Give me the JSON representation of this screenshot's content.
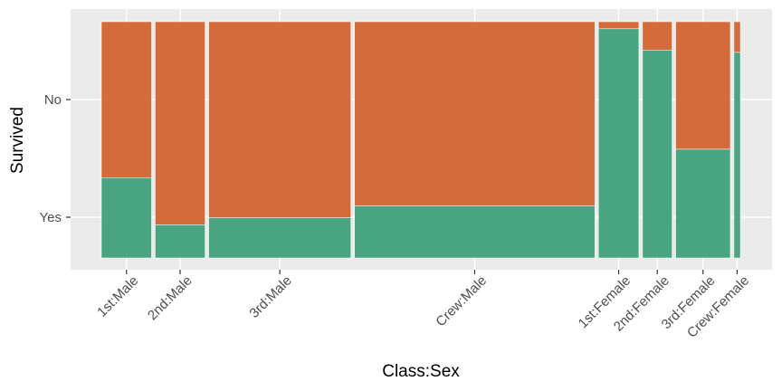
{
  "chart_data": {
    "type": "mosaic",
    "title": "",
    "xlabel": "Class:Sex",
    "ylabel": "Survived",
    "grid": true,
    "legend": "none",
    "y_categories": [
      "Yes",
      "No"
    ],
    "colors": {
      "Yes": "#3c9f79",
      "No": "#d2612c",
      "panel": "#ebebeb",
      "grid": "#ffffff"
    },
    "categories": [
      "1st:Male",
      "2nd:Male",
      "3rd:Male",
      "Crew:Male",
      "1st:Female",
      "2nd:Female",
      "3rd:Female",
      "Crew:Female"
    ],
    "counts": [
      180,
      179,
      510,
      862,
      145,
      106,
      196,
      23
    ],
    "yes_fraction": [
      0.34,
      0.14,
      0.17,
      0.22,
      0.97,
      0.88,
      0.46,
      0.87
    ]
  }
}
